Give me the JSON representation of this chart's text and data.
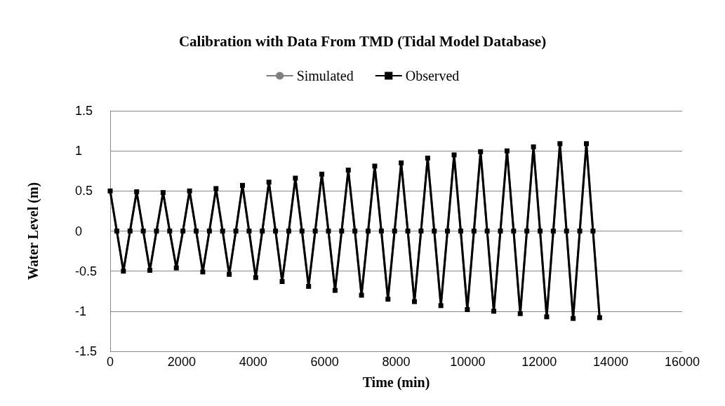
{
  "chart_data": {
    "type": "line",
    "title": "Calibration with Data From TMD (Tidal Model Database)",
    "xlabel": "Time (min)",
    "ylabel": "Water Level (m)",
    "x": [
      0,
      185,
      370,
      555,
      740,
      925,
      1110,
      1295,
      1480,
      1665,
      1850,
      2035,
      2220,
      2405,
      2590,
      2775,
      2960,
      3145,
      3330,
      3515,
      3700,
      3885,
      4070,
      4255,
      4440,
      4625,
      4810,
      4995,
      5180,
      5365,
      5550,
      5735,
      5920,
      6105,
      6290,
      6475,
      6660,
      6845,
      7030,
      7215,
      7400,
      7585,
      7770,
      7955,
      8140,
      8325,
      8510,
      8695,
      8880,
      9065,
      9250,
      9435,
      9620,
      9805,
      9990,
      10175,
      10360,
      10545,
      10730,
      10915,
      11100,
      11285,
      11470,
      11655,
      11840,
      12025,
      12210,
      12395,
      12580,
      12765,
      12950,
      13135,
      13320,
      13505,
      13690
    ],
    "series": [
      {
        "name": "Simulated",
        "color": "#7f7f7f",
        "marker": "none",
        "values": [
          0.5,
          0,
          -0.5,
          0,
          0.49,
          0,
          -0.49,
          0,
          0.48,
          0,
          -0.46,
          0,
          0.5,
          0,
          -0.51,
          0,
          0.53,
          0,
          -0.54,
          0,
          0.57,
          0,
          -0.58,
          0,
          0.61,
          0,
          -0.63,
          0,
          0.66,
          0,
          -0.69,
          0,
          0.71,
          0,
          -0.74,
          0,
          0.76,
          0,
          -0.8,
          0,
          0.81,
          0,
          -0.85,
          0,
          0.85,
          0,
          -0.88,
          0,
          0.91,
          0,
          -0.93,
          0,
          0.95,
          0,
          -0.98,
          0,
          0.99,
          0,
          -1.0,
          0,
          1.0,
          0,
          -1.03,
          0,
          1.05,
          0,
          -1.07,
          0,
          1.09,
          0,
          -1.09,
          0,
          1.09,
          0,
          -1.08
        ]
      },
      {
        "name": "Observed",
        "color": "#000000",
        "marker": "square",
        "values": [
          0.5,
          0,
          -0.5,
          0,
          0.49,
          0,
          -0.49,
          0,
          0.48,
          0,
          -0.46,
          0,
          0.5,
          0,
          -0.51,
          0,
          0.53,
          0,
          -0.54,
          0,
          0.57,
          0,
          -0.58,
          0,
          0.61,
          0,
          -0.63,
          0,
          0.66,
          0,
          -0.69,
          0,
          0.71,
          0,
          -0.74,
          0,
          0.76,
          0,
          -0.8,
          0,
          0.81,
          0,
          -0.85,
          0,
          0.85,
          0,
          -0.88,
          0,
          0.91,
          0,
          -0.93,
          0,
          0.95,
          0,
          -0.98,
          0,
          0.99,
          0,
          -1.0,
          0,
          1.0,
          0,
          -1.03,
          0,
          1.05,
          0,
          -1.07,
          0,
          1.09,
          0,
          -1.09,
          0,
          1.09,
          0,
          -1.08
        ]
      }
    ],
    "xlim": [
      0,
      16000
    ],
    "xticks": [
      0,
      2000,
      4000,
      6000,
      8000,
      10000,
      12000,
      14000,
      16000
    ],
    "ylim": [
      -1.5,
      1.5
    ],
    "yticks": [
      -1.5,
      -1,
      -0.5,
      0,
      0.5,
      1,
      1.5
    ],
    "grid": "y",
    "legend": "top",
    "line_style": "solid"
  }
}
